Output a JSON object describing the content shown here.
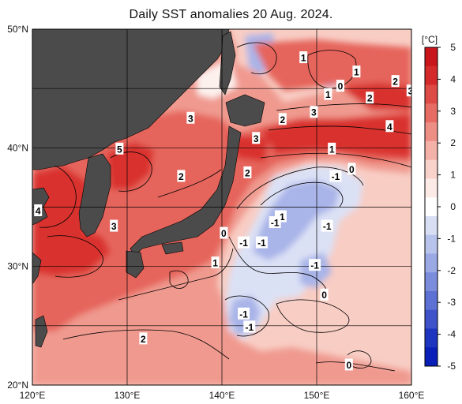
{
  "title": "Daily SST anomalies 20 Aug. 2024.",
  "colorbar": {
    "unit": "[°C]",
    "ticks": [
      "5",
      "4",
      "3",
      "2",
      "1",
      "0",
      "-1",
      "-2",
      "-3",
      "-4",
      "-5"
    ],
    "colors": [
      "#c8161c",
      "#d42a2c",
      "#de4a45",
      "#e66c64",
      "#ee8f86",
      "#f4b1a8",
      "#f8d2cb",
      "#fbeae6",
      "#ffffff",
      "#d8def4",
      "#b8c3ec",
      "#9aa8e4",
      "#7b8cdc",
      "#5d70d3",
      "#3e52ca",
      "#1e35c0",
      "#0a1fb8"
    ]
  },
  "axes": {
    "x_labels": [
      "120°E",
      "130°E",
      "140°E",
      "150°E",
      "160°E"
    ],
    "y_labels": [
      "50°N",
      "40°N",
      "30°N",
      "20°N"
    ]
  },
  "map_colors": {
    "land": "#4b4b4b",
    "warm_strong": "#d9332f",
    "warm_mid": "#e5655c",
    "warm_light": "#f09a8f",
    "warm_pale": "#f8cdc4",
    "neutral": "#fdf1ee",
    "cool_pale": "#dbe1f5",
    "cool_mid": "#a9b4e8",
    "cool_strong": "#6f7fd8"
  },
  "contour_labels": [
    {
      "text": "1",
      "lat": 47.6,
      "lon": 148.6
    },
    {
      "text": "1",
      "lat": 46.4,
      "lon": 154.2
    },
    {
      "text": "0",
      "lat": 45.2,
      "lon": 152.5
    },
    {
      "text": "1",
      "lat": 44.5,
      "lon": 151.2
    },
    {
      "text": "2",
      "lat": 45.6,
      "lon": 158.3
    },
    {
      "text": "3",
      "lat": 44.8,
      "lon": 159.9
    },
    {
      "text": "2",
      "lat": 44.2,
      "lon": 155.6
    },
    {
      "text": "3",
      "lat": 43.0,
      "lon": 149.7
    },
    {
      "text": "2",
      "lat": 42.4,
      "lon": 146.4
    },
    {
      "text": "4",
      "lat": 41.8,
      "lon": 157.7
    },
    {
      "text": "3",
      "lat": 42.5,
      "lon": 136.7
    },
    {
      "text": "3",
      "lat": 40.8,
      "lon": 143.6
    },
    {
      "text": "5",
      "lat": 39.9,
      "lon": 129.2
    },
    {
      "text": "1",
      "lat": 39.9,
      "lon": 151.6
    },
    {
      "text": "0",
      "lat": 38.2,
      "lon": 153.7
    },
    {
      "text": "-1",
      "lat": 37.6,
      "lon": 152.0
    },
    {
      "text": "2",
      "lat": 37.9,
      "lon": 142.7
    },
    {
      "text": "2",
      "lat": 37.6,
      "lon": 135.7
    },
    {
      "text": "4",
      "lat": 34.7,
      "lon": 120.6
    },
    {
      "text": "-1",
      "lat": 34.2,
      "lon": 146.2
    },
    {
      "text": "-1",
      "lat": 33.7,
      "lon": 145.6
    },
    {
      "text": "3",
      "lat": 33.4,
      "lon": 128.6
    },
    {
      "text": "-1",
      "lat": 33.4,
      "lon": 151.1
    },
    {
      "text": "0",
      "lat": 32.8,
      "lon": 140.2
    },
    {
      "text": "-1",
      "lat": 32.0,
      "lon": 144.2
    },
    {
      "text": "-1",
      "lat": 32.0,
      "lon": 142.3
    },
    {
      "text": "1",
      "lat": 30.3,
      "lon": 139.3
    },
    {
      "text": "-1",
      "lat": 30.1,
      "lon": 149.8
    },
    {
      "text": "0",
      "lat": 27.6,
      "lon": 150.8
    },
    {
      "text": "-1",
      "lat": 26.0,
      "lon": 142.3
    },
    {
      "text": "-1",
      "lat": 24.9,
      "lon": 142.9
    },
    {
      "text": "2",
      "lat": 23.9,
      "lon": 131.7
    },
    {
      "text": "0",
      "lat": 21.7,
      "lon": 153.4
    }
  ]
}
